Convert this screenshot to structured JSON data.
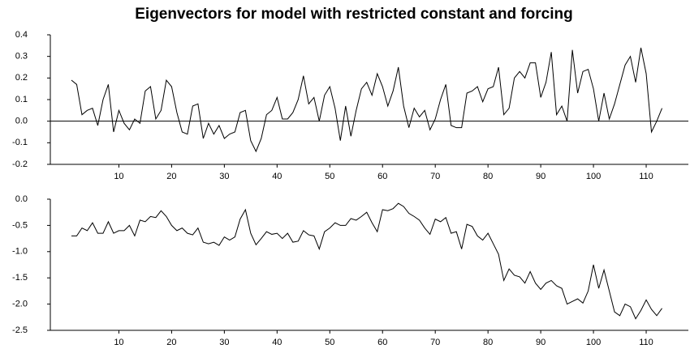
{
  "chart_data": [
    {
      "type": "line",
      "title": "Eigenvectors for model with restricted constant and forcing",
      "x": [
        1,
        2,
        3,
        4,
        5,
        6,
        7,
        8,
        9,
        10,
        11,
        12,
        13,
        14,
        15,
        16,
        17,
        18,
        19,
        20,
        21,
        22,
        23,
        24,
        25,
        26,
        27,
        28,
        29,
        30,
        31,
        32,
        33,
        34,
        35,
        36,
        37,
        38,
        39,
        40,
        41,
        42,
        43,
        44,
        45,
        46,
        47,
        48,
        49,
        50,
        51,
        52,
        53,
        54,
        55,
        56,
        57,
        58,
        59,
        60,
        61,
        62,
        63,
        64,
        65,
        66,
        67,
        68,
        69,
        70,
        71,
        72,
        73,
        74,
        75,
        76,
        77,
        78,
        79,
        80,
        81,
        82,
        83,
        84,
        85,
        86,
        87,
        88,
        89,
        90,
        91,
        92,
        93,
        94,
        95,
        96,
        97,
        98,
        99,
        100,
        101,
        102,
        103,
        104,
        105,
        106,
        107,
        108,
        109,
        110,
        111,
        112,
        113
      ],
      "values": [
        0.19,
        0.17,
        0.03,
        0.05,
        0.06,
        -0.02,
        0.1,
        0.17,
        -0.05,
        0.05,
        -0.01,
        -0.04,
        0.01,
        -0.01,
        0.14,
        0.16,
        0.01,
        0.05,
        0.19,
        0.16,
        0.04,
        -0.05,
        -0.06,
        0.07,
        0.08,
        -0.08,
        -0.01,
        -0.06,
        -0.02,
        -0.08,
        -0.06,
        -0.05,
        0.04,
        0.05,
        -0.09,
        -0.14,
        -0.08,
        0.03,
        0.05,
        0.11,
        0.01,
        0.01,
        0.04,
        0.1,
        0.21,
        0.08,
        0.11,
        0.0,
        0.12,
        0.16,
        0.06,
        -0.09,
        0.07,
        -0.07,
        0.05,
        0.15,
        0.18,
        0.12,
        0.22,
        0.16,
        0.07,
        0.14,
        0.25,
        0.07,
        -0.03,
        0.06,
        0.02,
        0.05,
        -0.04,
        0.01,
        0.1,
        0.17,
        -0.02,
        -0.03,
        -0.03,
        0.13,
        0.14,
        0.16,
        0.09,
        0.15,
        0.16,
        0.25,
        0.03,
        0.06,
        0.2,
        0.23,
        0.2,
        0.27,
        0.27,
        0.11,
        0.18,
        0.32,
        0.03,
        0.07,
        0.0,
        0.33,
        0.13,
        0.23,
        0.24,
        0.15,
        0.0,
        0.13,
        0.01,
        0.08,
        0.17,
        0.26,
        0.3,
        0.18,
        0.34,
        0.22,
        -0.05,
        0.0,
        0.06
      ],
      "color": "#000000",
      "xlim": [
        -3,
        118
      ],
      "xticks": [
        10,
        20,
        30,
        40,
        50,
        60,
        70,
        80,
        90,
        100,
        110
      ],
      "ylim": [
        -0.2,
        0.4
      ],
      "yticks": [
        -0.2,
        -0.1,
        {
          "value": 0,
          "label": "0.0"
        },
        0.1,
        0.2,
        0.3,
        0.4
      ],
      "zero_line": true
    },
    {
      "type": "line",
      "x": [
        1,
        2,
        3,
        4,
        5,
        6,
        7,
        8,
        9,
        10,
        11,
        12,
        13,
        14,
        15,
        16,
        17,
        18,
        19,
        20,
        21,
        22,
        23,
        24,
        25,
        26,
        27,
        28,
        29,
        30,
        31,
        32,
        33,
        34,
        35,
        36,
        37,
        38,
        39,
        40,
        41,
        42,
        43,
        44,
        45,
        46,
        47,
        48,
        49,
        50,
        51,
        52,
        53,
        54,
        55,
        56,
        57,
        58,
        59,
        60,
        61,
        62,
        63,
        64,
        65,
        66,
        67,
        68,
        69,
        70,
        71,
        72,
        73,
        74,
        75,
        76,
        77,
        78,
        79,
        80,
        81,
        82,
        83,
        84,
        85,
        86,
        87,
        88,
        89,
        90,
        91,
        92,
        93,
        94,
        95,
        96,
        97,
        98,
        99,
        100,
        101,
        102,
        103,
        104,
        105,
        106,
        107,
        108,
        109,
        110,
        111,
        112,
        113
      ],
      "values": [
        -0.7,
        -0.7,
        -0.55,
        -0.6,
        -0.45,
        -0.65,
        -0.65,
        -0.43,
        -0.65,
        -0.6,
        -0.6,
        -0.5,
        -0.7,
        -0.4,
        -0.43,
        -0.33,
        -0.35,
        -0.22,
        -0.33,
        -0.5,
        -0.6,
        -0.55,
        -0.65,
        -0.68,
        -0.55,
        -0.82,
        -0.85,
        -0.82,
        -0.88,
        -0.72,
        -0.78,
        -0.72,
        -0.38,
        -0.2,
        -0.65,
        -0.87,
        -0.75,
        -0.62,
        -0.67,
        -0.65,
        -0.75,
        -0.65,
        -0.82,
        -0.8,
        -0.6,
        -0.68,
        -0.7,
        -0.95,
        -0.62,
        -0.55,
        -0.45,
        -0.5,
        -0.5,
        -0.37,
        -0.4,
        -0.33,
        -0.25,
        -0.45,
        -0.62,
        -0.2,
        -0.22,
        -0.18,
        -0.08,
        -0.14,
        -0.27,
        -0.33,
        -0.4,
        -0.55,
        -0.67,
        -0.38,
        -0.43,
        -0.35,
        -0.65,
        -0.62,
        -0.95,
        -0.48,
        -0.52,
        -0.7,
        -0.78,
        -0.65,
        -0.85,
        -1.05,
        -1.55,
        -1.33,
        -1.45,
        -1.48,
        -1.6,
        -1.38,
        -1.6,
        -1.72,
        -1.6,
        -1.55,
        -1.65,
        -1.7,
        -2.0,
        -1.95,
        -1.9,
        -1.98,
        -1.75,
        -1.25,
        -1.7,
        -1.35,
        -1.75,
        -2.15,
        -2.22,
        -2.0,
        -2.05,
        -2.28,
        -2.12,
        -1.92,
        -2.1,
        -2.22,
        -2.08
      ],
      "color": "#000000",
      "xlim": [
        -3,
        118
      ],
      "xticks": [
        10,
        20,
        30,
        40,
        50,
        60,
        70,
        80,
        90,
        100,
        110
      ],
      "ylim": [
        -2.5,
        0
      ],
      "yticks": [
        -2.5,
        {
          "value": -2,
          "label": "-2.0"
        },
        -1.5,
        {
          "value": -1,
          "label": "-1.0"
        },
        -0.5,
        {
          "value": 0,
          "label": "0.0"
        }
      ],
      "zero_line": false
    }
  ]
}
